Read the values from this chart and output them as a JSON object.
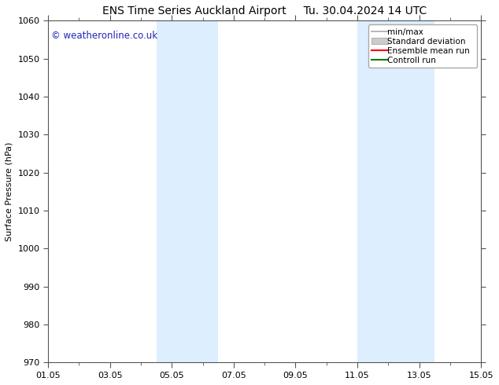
{
  "title_left": "ENS Time Series Auckland Airport",
  "title_right": "Tu. 30.04.2024 14 UTC",
  "ylabel": "Surface Pressure (hPa)",
  "ylim": [
    970,
    1060
  ],
  "yticks": [
    970,
    980,
    990,
    1000,
    1010,
    1020,
    1030,
    1040,
    1050,
    1060
  ],
  "xlim": [
    0,
    14
  ],
  "xtick_positions": [
    0,
    2,
    4,
    6,
    8,
    10,
    12,
    14
  ],
  "xtick_labels": [
    "01.05",
    "03.05",
    "05.05",
    "07.05",
    "09.05",
    "11.05",
    "13.05",
    "15.05"
  ],
  "shaded_bands": [
    {
      "xmin": 3.5,
      "xmax": 5.5
    },
    {
      "xmin": 10.0,
      "xmax": 12.5
    }
  ],
  "band_color": "#ddeeff",
  "watermark": "© weatheronline.co.uk",
  "watermark_color": "#2222bb",
  "watermark_fontsize": 8.5,
  "legend_items": [
    {
      "label": "min/max",
      "color": "#aaaaaa",
      "lw": 1.2,
      "type": "line"
    },
    {
      "label": "Standard deviation",
      "color": "#cccccc",
      "lw": 5,
      "type": "patch"
    },
    {
      "label": "Ensemble mean run",
      "color": "#ff0000",
      "lw": 1.5,
      "type": "line"
    },
    {
      "label": "Controll run",
      "color": "#008000",
      "lw": 1.5,
      "type": "line"
    }
  ],
  "bg_color": "#ffffff",
  "title_fontsize": 10,
  "axis_label_fontsize": 8,
  "tick_fontsize": 8,
  "legend_fontsize": 7.5
}
